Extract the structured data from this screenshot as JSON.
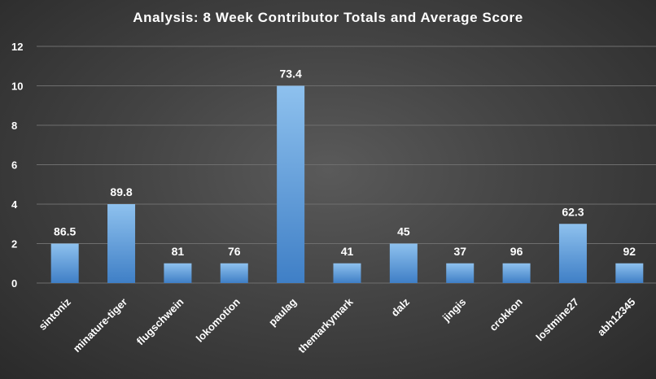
{
  "chart_data": {
    "type": "bar",
    "title": "Analysis:  8 Week Contributor Totals and Average Score",
    "xlabel": "",
    "ylabel": "",
    "ylim": [
      0,
      12
    ],
    "yticks": [
      0,
      2,
      4,
      6,
      8,
      10,
      12
    ],
    "grid": true,
    "legend": "none",
    "categories": [
      "sintoniz",
      "minature-tiger",
      "flugschwein",
      "lokomotion",
      "paulag",
      "themarkymark",
      "dalz",
      "jingis",
      "crokkon",
      "lostmine27",
      "abh12345"
    ],
    "values": [
      2,
      4,
      1,
      1,
      10,
      1,
      2,
      1,
      1,
      3,
      1
    ],
    "data_labels": [
      "86.5",
      "89.8",
      "81",
      "76",
      "73.4",
      "41",
      "45",
      "37",
      "96",
      "62.3",
      "92"
    ],
    "colors": {
      "bar_top": "#8ec1ee",
      "bar_bottom": "#3f7fc6",
      "text": "#ffffff",
      "grid": "#6e6e6e"
    }
  }
}
